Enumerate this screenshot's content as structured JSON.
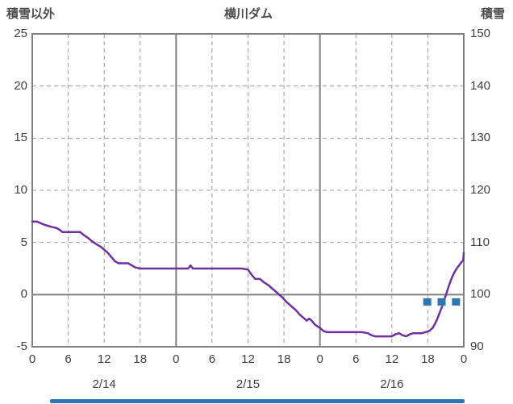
{
  "header": {
    "left_label": "積雪以外",
    "title": "横川ダム",
    "right_label": "積雪"
  },
  "colors": {
    "line": "#7030A0",
    "marker": "#2E75B6",
    "grid_dashed": "#9e9e9e",
    "grid_solid": "#808080",
    "border": "#808080",
    "text": "#404040",
    "scrollbar": "#2E75B6"
  },
  "chart_data": {
    "type": "line",
    "title": "横川ダム",
    "left_axis": {
      "label": "積雪以外",
      "min": -5,
      "max": 25,
      "ticks": [
        25,
        20,
        15,
        10,
        5,
        0,
        -5
      ],
      "zero_line_value": 0
    },
    "right_axis": {
      "label": "積雪",
      "min": 90,
      "max": 150,
      "ticks": [
        150,
        140,
        130,
        120,
        110,
        100,
        90
      ]
    },
    "x_axis": {
      "min_hour": 0,
      "max_hour": 72,
      "tick_hours": [
        0,
        6,
        12,
        18,
        24,
        30,
        36,
        42,
        48,
        54,
        60,
        66,
        72
      ],
      "tick_labels": [
        "0",
        "6",
        "12",
        "18",
        "0",
        "6",
        "12",
        "18",
        "0",
        "6",
        "12",
        "18",
        "0"
      ],
      "solid_hours": [
        24,
        48
      ],
      "day_labels": [
        {
          "label": "2/14",
          "hour": 12
        },
        {
          "label": "2/15",
          "hour": 36
        },
        {
          "label": "2/16",
          "hour": 60
        }
      ]
    },
    "series": [
      {
        "name": "積雪以外",
        "axis": "left",
        "style": "line",
        "color": "#7030A0",
        "points": [
          [
            0,
            7.0
          ],
          [
            0.8,
            7.0
          ],
          [
            1.2,
            6.9
          ],
          [
            2,
            6.7
          ],
          [
            2.6,
            6.6
          ],
          [
            3.2,
            6.5
          ],
          [
            4,
            6.4
          ],
          [
            4.6,
            6.2
          ],
          [
            5,
            6.0
          ],
          [
            6,
            6.0
          ],
          [
            7,
            6.0
          ],
          [
            8,
            6.0
          ],
          [
            8.6,
            5.7
          ],
          [
            9.4,
            5.4
          ],
          [
            10,
            5.1
          ],
          [
            10.8,
            4.8
          ],
          [
            11.4,
            4.6
          ],
          [
            12,
            4.3
          ],
          [
            12.6,
            4.0
          ],
          [
            13.2,
            3.6
          ],
          [
            13.8,
            3.2
          ],
          [
            14.4,
            3.0
          ],
          [
            15,
            3.0
          ],
          [
            16,
            3.0
          ],
          [
            16.6,
            2.8
          ],
          [
            17.2,
            2.6
          ],
          [
            18,
            2.5
          ],
          [
            19,
            2.5
          ],
          [
            20,
            2.5
          ],
          [
            21,
            2.5
          ],
          [
            22,
            2.5
          ],
          [
            23,
            2.5
          ],
          [
            24,
            2.5
          ],
          [
            25,
            2.5
          ],
          [
            26,
            2.5
          ],
          [
            26.4,
            2.8
          ],
          [
            26.8,
            2.5
          ],
          [
            28,
            2.5
          ],
          [
            29,
            2.5
          ],
          [
            30,
            2.5
          ],
          [
            31,
            2.5
          ],
          [
            32,
            2.5
          ],
          [
            33,
            2.5
          ],
          [
            34,
            2.5
          ],
          [
            35,
            2.5
          ],
          [
            36,
            2.4
          ],
          [
            36.6,
            1.9
          ],
          [
            37.2,
            1.5
          ],
          [
            38,
            1.5
          ],
          [
            38.6,
            1.2
          ],
          [
            39.4,
            0.9
          ],
          [
            40,
            0.6
          ],
          [
            40.8,
            0.2
          ],
          [
            41.6,
            -0.2
          ],
          [
            42.4,
            -0.7
          ],
          [
            43.2,
            -1.1
          ],
          [
            44,
            -1.5
          ],
          [
            44.6,
            -1.9
          ],
          [
            45.2,
            -2.2
          ],
          [
            45.8,
            -2.5
          ],
          [
            46.2,
            -2.3
          ],
          [
            46.6,
            -2.5
          ],
          [
            47.2,
            -2.9
          ],
          [
            48,
            -3.2
          ],
          [
            48.6,
            -3.5
          ],
          [
            49.2,
            -3.6
          ],
          [
            50,
            -3.6
          ],
          [
            51,
            -3.6
          ],
          [
            52,
            -3.6
          ],
          [
            53,
            -3.6
          ],
          [
            54,
            -3.6
          ],
          [
            55,
            -3.6
          ],
          [
            56,
            -3.7
          ],
          [
            56.6,
            -3.9
          ],
          [
            57.2,
            -4.0
          ],
          [
            58,
            -4.0
          ],
          [
            59,
            -4.0
          ],
          [
            60,
            -4.0
          ],
          [
            60.6,
            -3.8
          ],
          [
            61.2,
            -3.7
          ],
          [
            61.8,
            -3.9
          ],
          [
            62.4,
            -4.0
          ],
          [
            63,
            -3.8
          ],
          [
            63.6,
            -3.7
          ],
          [
            64.4,
            -3.7
          ],
          [
            65,
            -3.7
          ],
          [
            65.6,
            -3.6
          ],
          [
            66.2,
            -3.5
          ],
          [
            66.8,
            -3.2
          ],
          [
            67.2,
            -2.8
          ],
          [
            67.6,
            -2.3
          ],
          [
            68,
            -1.7
          ],
          [
            68.4,
            -1.1
          ],
          [
            68.8,
            -0.4
          ],
          [
            69.2,
            0.3
          ],
          [
            69.6,
            1.0
          ],
          [
            70,
            1.6
          ],
          [
            70.4,
            2.1
          ],
          [
            70.8,
            2.5
          ],
          [
            71.2,
            2.8
          ],
          [
            71.6,
            3.1
          ],
          [
            71.9,
            3.3
          ],
          [
            72,
            4.0
          ]
        ]
      },
      {
        "name": "積雪",
        "axis": "right",
        "style": "square-marker",
        "color": "#2E75B6",
        "points": [
          [
            65.9,
            98.6
          ],
          [
            68.3,
            98.6
          ],
          [
            70.7,
            98.6
          ]
        ]
      }
    ]
  }
}
